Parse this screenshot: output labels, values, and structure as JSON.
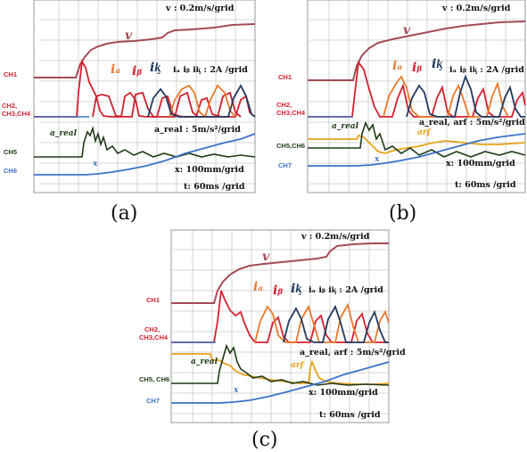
{
  "colors": {
    "v": "#a24c55",
    "ch1_red": "#d42131",
    "ch2_red": "#d42131",
    "ch3_orange": "#e87a2d",
    "ch4_navy": "#233a5e",
    "a_real": "#1f3a18",
    "arf": "#e7a21a",
    "x": "#3d73c5",
    "ch6_label": "#f0a020",
    "ch7_label": "#3d73c5"
  },
  "panels": [
    {
      "caption": "(a)",
      "annotations": {
        "v": "v : 0.2m/s/grid",
        "i": "iₐ iᵦ iᶄ : 2A /grid",
        "a": "a_real : 5m/s²/grid",
        "x": "x: 100mm/grid",
        "t": "t: 60ms /grid"
      },
      "channel_labels": [
        "CH1",
        "CH2,",
        "CH3,CH4",
        "CH5",
        "CH6"
      ],
      "trace_labels": {
        "v": "v",
        "ia": "iₐ",
        "ib": "iᵦ",
        "ic": "iᶄ",
        "a_real": "a_real",
        "x": "x"
      }
    },
    {
      "caption": "(b)",
      "annotations": {
        "v": "v : 0.2m/s/grid",
        "i": "iₐ iᵦ iᶄ : 2A /grid",
        "a": "a_real, arf : 5m/s²/grid",
        "x": "x: 100mm/grid",
        "t": "t: 60ms /grid"
      },
      "channel_labels": [
        "CH1",
        "CH2,",
        "CH3,CH4",
        "CH5,CH6",
        "CH7"
      ],
      "trace_labels": {
        "v": "v",
        "ia": "iₐ",
        "ib": "iᵦ",
        "ic": "iᶄ",
        "a_real": "a_real",
        "arf": "arf",
        "x": "x"
      }
    },
    {
      "caption": "(c)",
      "annotations": {
        "v": "v : 0.2m/s/grid",
        "i": "iₐ iᵦ iᶄ : 2A /grid",
        "a": "a_real, arf : 5m/s²/grid",
        "x": "x: 100mm/grid",
        "t": "t: 60ms /grid"
      },
      "channel_labels": [
        "CH1",
        "CH2,",
        "CH3,CH4",
        "CH5, CH6",
        "CH7"
      ],
      "trace_labels": {
        "v": "v",
        "ia": "iₐ",
        "ib": "iᵦ",
        "ic": "iᶄ",
        "a_real": "a_real",
        "arf": "arf",
        "x": "x"
      }
    }
  ],
  "chart_data": [
    {
      "type": "line",
      "title": "(a)",
      "xlabel": "t: 60ms /grid",
      "x_grid_divisions": 10,
      "y_grid_divisions": 8,
      "series": [
        {
          "name": "v",
          "x": [
            0,
            2,
            3,
            4,
            5,
            6,
            7,
            8,
            9,
            10
          ],
          "y": [
            1.0,
            1.0,
            1.36,
            1.48,
            1.52,
            1.58,
            1.62,
            1.62,
            1.64,
            1.66
          ]
        },
        {
          "name": "iₐ",
          "x": [
            0,
            1.35,
            1.45,
            1.6,
            3.5,
            3.7,
            3.9,
            5.5,
            5.7,
            5.9,
            7.5,
            7.7
          ],
          "y": [
            0,
            0,
            2.8,
            2.4,
            2.0,
            1.4,
            0.2,
            0.2,
            1.6,
            0.4,
            0.2,
            1.2
          ]
        },
        {
          "name": "iᵦ",
          "x": [
            0,
            2.9,
            3.1,
            3.4,
            4.8,
            5.0,
            6.6,
            6.8,
            8.3,
            8.5
          ],
          "y": [
            0,
            0,
            1.5,
            0.8,
            0.3,
            1.6,
            0.3,
            1.5,
            0.3,
            1.4
          ]
        },
        {
          "name": "iᶄ",
          "x": [
            0,
            4.0,
            4.2,
            4.4,
            6.0,
            6.2,
            7.6,
            7.8,
            9.2,
            9.4
          ],
          "y": [
            0,
            0,
            1.8,
            0.6,
            0.2,
            1.7,
            0.2,
            1.6,
            0.2,
            1.4
          ]
        },
        {
          "name": "a_real",
          "x": [
            0,
            1.4,
            1.7,
            2.0,
            2.4,
            3.0,
            4.0,
            6.0,
            8.0,
            10.0
          ],
          "y": [
            0,
            0,
            1.8,
            0.9,
            0.5,
            0.2,
            0.1,
            0.1,
            0.05,
            0.05
          ]
        },
        {
          "name": "x",
          "x": [
            0,
            2,
            3,
            4,
            5,
            6,
            7,
            8,
            9,
            10
          ],
          "y": [
            0,
            0.02,
            0.06,
            0.12,
            0.25,
            0.45,
            0.65,
            0.9,
            1.2,
            1.5
          ]
        }
      ]
    },
    {
      "type": "line",
      "title": "(b)",
      "xlabel": "t: 60ms /grid",
      "x_grid_divisions": 10,
      "y_grid_divisions": 8,
      "series": [
        {
          "name": "v",
          "x": [
            0,
            2,
            3,
            4,
            5,
            6,
            7,
            8,
            9,
            10
          ],
          "y": [
            1.0,
            1.0,
            1.38,
            1.5,
            1.55,
            1.6,
            1.64,
            1.68,
            1.7,
            1.72
          ]
        },
        {
          "name": "a_real",
          "x": [
            0,
            1.8,
            2.1,
            2.4,
            3.0,
            4.0,
            6.0,
            8.0,
            10.0
          ],
          "y": [
            0,
            0,
            1.8,
            0.8,
            0.3,
            0.2,
            0.1,
            0.1,
            0.05
          ]
        },
        {
          "name": "arf",
          "x": [
            0,
            1.7,
            1.8,
            2.5,
            3.2,
            4.0,
            5.0,
            6.0,
            8.0,
            10.0
          ],
          "y": [
            0.6,
            0.6,
            0.7,
            0.6,
            0.5,
            0.4,
            0.25,
            0.15,
            0.1,
            0.05
          ]
        },
        {
          "name": "x",
          "x": [
            0,
            2,
            3,
            4,
            5,
            6,
            7,
            8,
            9,
            10
          ],
          "y": [
            0,
            0.02,
            0.06,
            0.13,
            0.27,
            0.47,
            0.68,
            0.93,
            1.25,
            1.55
          ]
        }
      ]
    },
    {
      "type": "line",
      "title": "(c)",
      "xlabel": "t: 60ms /grid",
      "x_grid_divisions": 10,
      "y_grid_divisions": 8,
      "series": [
        {
          "name": "v",
          "x": [
            0,
            2,
            3,
            4,
            5,
            6,
            7,
            8,
            9,
            10
          ],
          "y": [
            1.0,
            1.0,
            1.35,
            1.47,
            1.52,
            1.56,
            1.62,
            1.72,
            1.74,
            1.75
          ]
        },
        {
          "name": "a_real",
          "x": [
            0,
            2.0,
            2.2,
            2.5,
            3.0,
            4.0,
            6.0,
            8.0,
            10.0
          ],
          "y": [
            0,
            0,
            1.4,
            0.6,
            0.3,
            0.2,
            0.1,
            0.05,
            0.05
          ]
        },
        {
          "name": "arf",
          "x": [
            0,
            1.6,
            1.7,
            2.2,
            3.0,
            4.0,
            5.5,
            6.2,
            6.3,
            7.0,
            10.0
          ],
          "y": [
            1.0,
            1.0,
            0.9,
            0.8,
            0.4,
            0.2,
            0.1,
            0.1,
            0.8,
            0.2,
            0.1
          ]
        },
        {
          "name": "x",
          "x": [
            0,
            2,
            3,
            4,
            5,
            6,
            7,
            8,
            9,
            10
          ],
          "y": [
            0,
            0.02,
            0.06,
            0.13,
            0.27,
            0.47,
            0.69,
            0.95,
            1.25,
            1.55
          ]
        }
      ]
    }
  ]
}
